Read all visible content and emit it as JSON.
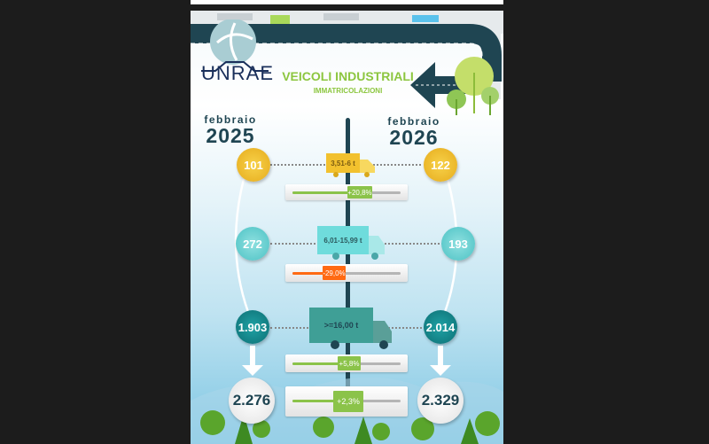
{
  "brand": {
    "logo_text": "UNRAE"
  },
  "header": {
    "title": "VEICOLI INDUSTRIALI",
    "subtitle": "IMMATRICOLAZIONI"
  },
  "periods": [
    {
      "month": "febbraio",
      "year": "2025"
    },
    {
      "month": "febbraio",
      "year": "2026"
    }
  ],
  "rows": [
    {
      "category": "3,51-6 t",
      "value_2025": "101",
      "value_2026": "122",
      "change": "+20,8%",
      "change_pct": 20.8,
      "color": "#f2c12e"
    },
    {
      "category": "6,01-15,99 t",
      "value_2025": "272",
      "value_2026": "193",
      "change": "-29,0%",
      "change_pct": -29.0,
      "color": "#5fcfcf"
    },
    {
      "category": ">=16,00 t",
      "value_2025": "1.903",
      "value_2026": "2.014",
      "change": "+5,8%",
      "change_pct": 5.8,
      "color": "#1a8a8e"
    }
  ],
  "total": {
    "value_2025": "2.276",
    "value_2026": "2.329",
    "change": "+2,3%",
    "change_pct": 2.3
  },
  "colors": {
    "positive": "#8bc34a",
    "negative": "#ff6a13",
    "road": "#1f4552",
    "title": "#8cc63f"
  }
}
